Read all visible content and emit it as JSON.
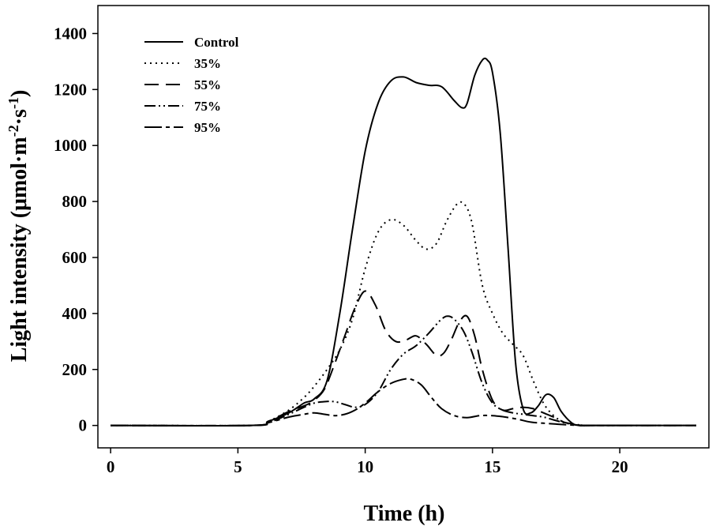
{
  "chart_data": {
    "type": "line",
    "title": "",
    "xlabel": "Time (h)",
    "ylabel_main": "Light intensity (",
    "ylabel_unit": "μmol·m",
    "ylabel_sup1": "-2",
    "ylabel_mid": "·s",
    "ylabel_sup2": "-1",
    "ylabel_end": ")",
    "xlim": [
      -0.5,
      23.5
    ],
    "ylim": [
      -80,
      1500
    ],
    "xticks": [
      0,
      5,
      10,
      15,
      20
    ],
    "yticks": [
      0,
      200,
      400,
      600,
      800,
      1000,
      1200,
      1400
    ],
    "legend_position": "top-left",
    "series": [
      {
        "name": "Control",
        "dash": "",
        "x": [
          0,
          5.5,
          6.2,
          7.0,
          7.6,
          8.0,
          8.5,
          9.0,
          9.5,
          10.0,
          10.5,
          11.0,
          11.5,
          12.0,
          12.5,
          13.0,
          13.5,
          13.8,
          14.0,
          14.3,
          14.6,
          14.8,
          15.0,
          15.3,
          15.6,
          15.9,
          16.2,
          16.5,
          16.8,
          17.1,
          17.4,
          17.7,
          18.1,
          18.4,
          19.0,
          23
        ],
        "y": [
          0,
          0,
          15,
          45,
          80,
          95,
          160,
          400,
          700,
          980,
          1150,
          1230,
          1245,
          1225,
          1215,
          1210,
          1160,
          1135,
          1150,
          1250,
          1305,
          1305,
          1260,
          1050,
          650,
          230,
          60,
          45,
          70,
          110,
          100,
          50,
          10,
          0,
          0,
          0
        ]
      },
      {
        "name": "35%",
        "dash": "2 5",
        "x": [
          0,
          5.5,
          6.2,
          7.0,
          7.6,
          8.0,
          8.5,
          9.0,
          9.5,
          10.0,
          10.5,
          11.0,
          11.5,
          12.0,
          12.4,
          12.8,
          13.2,
          13.6,
          13.9,
          14.2,
          14.6,
          15.0,
          15.4,
          15.8,
          16.2,
          16.6,
          17.0,
          17.4,
          17.8,
          18.2,
          18.6,
          19.0,
          23
        ],
        "y": [
          0,
          0,
          15,
          55,
          100,
          140,
          200,
          270,
          380,
          560,
          690,
          735,
          715,
          660,
          630,
          650,
          730,
          790,
          790,
          720,
          500,
          400,
          330,
          290,
          250,
          160,
          80,
          35,
          12,
          5,
          0,
          0,
          0
        ]
      },
      {
        "name": "55%",
        "dash": "18 9",
        "x": [
          0,
          5.5,
          6.2,
          7.0,
          7.6,
          8.0,
          8.4,
          8.8,
          9.2,
          9.6,
          10.0,
          10.4,
          10.8,
          11.2,
          11.6,
          12.0,
          12.4,
          12.8,
          13.1,
          13.4,
          13.7,
          14.0,
          14.3,
          14.6,
          15.0,
          15.4,
          15.8,
          16.2,
          16.6,
          17.0,
          17.4,
          17.8,
          18.2,
          18.6,
          19.0,
          23
        ],
        "y": [
          0,
          0,
          15,
          50,
          70,
          90,
          130,
          220,
          320,
          420,
          480,
          430,
          340,
          300,
          305,
          320,
          290,
          250,
          260,
          310,
          370,
          390,
          320,
          200,
          90,
          55,
          60,
          65,
          60,
          45,
          30,
          12,
          5,
          0,
          0,
          0
        ]
      },
      {
        "name": "75%",
        "dash": "14 4 2 4 2 4",
        "x": [
          0,
          5.5,
          6.2,
          7.0,
          7.6,
          8.0,
          8.4,
          8.8,
          9.2,
          9.6,
          10.0,
          10.5,
          11.0,
          11.5,
          12.0,
          12.5,
          13.0,
          13.3,
          13.6,
          13.9,
          14.2,
          14.6,
          15.0,
          15.4,
          15.8,
          16.2,
          16.6,
          17.0,
          17.4,
          17.8,
          18.2,
          18.6,
          19.0,
          23
        ],
        "y": [
          0,
          0,
          10,
          40,
          65,
          80,
          85,
          85,
          75,
          65,
          75,
          120,
          200,
          255,
          285,
          330,
          380,
          390,
          370,
          330,
          260,
          150,
          80,
          55,
          45,
          40,
          35,
          30,
          20,
          10,
          3,
          0,
          0,
          0
        ]
      },
      {
        "name": "95%",
        "dash": "22 5 5 5",
        "x": [
          0,
          5.5,
          6.2,
          7.0,
          7.6,
          8.0,
          8.4,
          8.8,
          9.2,
          9.6,
          10.0,
          10.5,
          11.0,
          11.5,
          11.8,
          12.2,
          12.6,
          13.0,
          13.5,
          14.0,
          14.5,
          15.0,
          15.5,
          16.0,
          16.5,
          17.0,
          17.5,
          18.0,
          18.5,
          19.0,
          23
        ],
        "y": [
          0,
          0,
          10,
          30,
          40,
          45,
          40,
          35,
          40,
          55,
          80,
          120,
          150,
          165,
          165,
          145,
          100,
          60,
          35,
          28,
          35,
          35,
          30,
          22,
          12,
          8,
          5,
          2,
          0,
          0,
          0
        ]
      }
    ]
  }
}
